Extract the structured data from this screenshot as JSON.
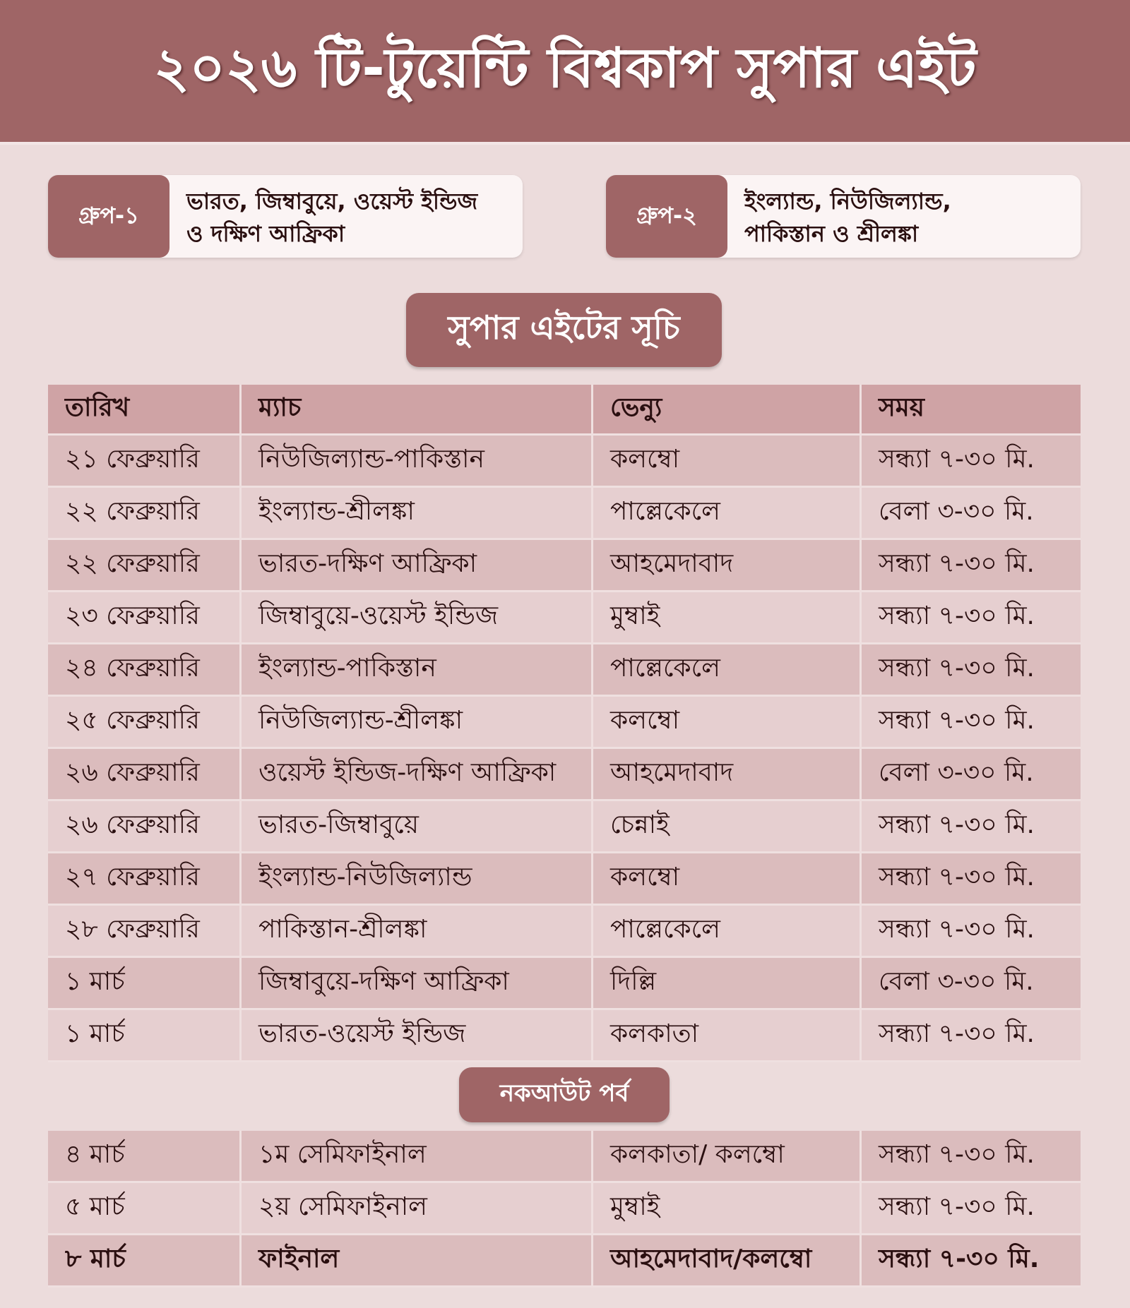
{
  "title": "২০২৬ টি-টুয়েন্টি বিশ্বকাপ সুপার এইট",
  "groups": [
    {
      "label": "গ্রুপ-১",
      "line1": "ভারত, জিম্বাবুয়ে, ওয়েস্ট ইন্ডিজ",
      "line2": "ও দক্ষিণ আফ্রিকা"
    },
    {
      "label": "গ্রুপ-২",
      "line1": "ইংল্যান্ড, নিউজিল্যান্ড,",
      "line2": "পাকিস্তান ও শ্রীলঙ্কা"
    }
  ],
  "schedule_title": "সুপার এইটের সূচি",
  "columns": [
    "তারিখ",
    "ম্যাচ",
    "ভেন্যু",
    "সময়"
  ],
  "super_eight": [
    [
      "২১ ফেব্রুয়ারি",
      "নিউজিল্যান্ড-পাকিস্তান",
      "কলম্বো",
      "সন্ধ্যা ৭-৩০ মি."
    ],
    [
      "২২ ফেব্রুয়ারি",
      "ইংল্যান্ড-শ্রীলঙ্কা",
      "পাল্লেকেলে",
      "বেলা ৩-৩০ মি."
    ],
    [
      "২২ ফেব্রুয়ারি",
      "ভারত-দক্ষিণ আফ্রিকা",
      "আহমেদাবাদ",
      "সন্ধ্যা ৭-৩০ মি."
    ],
    [
      "২৩ ফেব্রুয়ারি",
      "জিম্বাবুয়ে-ওয়েস্ট ইন্ডিজ",
      "মুম্বাই",
      "সন্ধ্যা ৭-৩০ মি."
    ],
    [
      "২৪ ফেব্রুয়ারি",
      "ইংল্যান্ড-পাকিস্তান",
      "পাল্লেকেলে",
      "সন্ধ্যা ৭-৩০ মি."
    ],
    [
      "২৫ ফেব্রুয়ারি",
      "নিউজিল্যান্ড-শ্রীলঙ্কা",
      "কলম্বো",
      "সন্ধ্যা ৭-৩০ মি."
    ],
    [
      "২৬ ফেব্রুয়ারি",
      "ওয়েস্ট ইন্ডিজ-দক্ষিণ আফ্রিকা",
      "আহমেদাবাদ",
      "বেলা ৩-৩০ মি."
    ],
    [
      "২৬ ফেব্রুয়ারি",
      "ভারত-জিম্বাবুয়ে",
      "চেন্নাই",
      "সন্ধ্যা ৭-৩০ মি."
    ],
    [
      "২৭ ফেব্রুয়ারি",
      "ইংল্যান্ড-নিউজিল্যান্ড",
      "কলম্বো",
      "সন্ধ্যা ৭-৩০ মি."
    ],
    [
      "২৮ ফেব্রুয়ারি",
      "পাকিস্তান-শ্রীলঙ্কা",
      "পাল্লেকেলে",
      "সন্ধ্যা ৭-৩০ মি."
    ],
    [
      "১ মার্চ",
      "জিম্বাবুয়ে-দক্ষিণ আফ্রিকা",
      "দিল্লি",
      "বেলা ৩-৩০ মি."
    ],
    [
      "১ মার্চ",
      "ভারত-ওয়েস্ট ইন্ডিজ",
      "কলকাতা",
      "সন্ধ্যা ৭-৩০ মি."
    ]
  ],
  "knockout_title": "নকআউট পর্ব",
  "knockout": [
    [
      "৪ মার্চ",
      "১ম সেমিফাইনাল",
      "কলকাতা/ কলম্বো",
      "সন্ধ্যা ৭-৩০ মি."
    ],
    [
      "৫ মার্চ",
      "২য় সেমিফাইনাল",
      "মুম্বাই",
      "সন্ধ্যা ৭-৩০ মি."
    ],
    [
      "৮ মার্চ",
      "ফাইনাল",
      "আহমেদাবাদ/কলম্বো",
      "সন্ধ্যা ৭-৩০ মি."
    ]
  ]
}
